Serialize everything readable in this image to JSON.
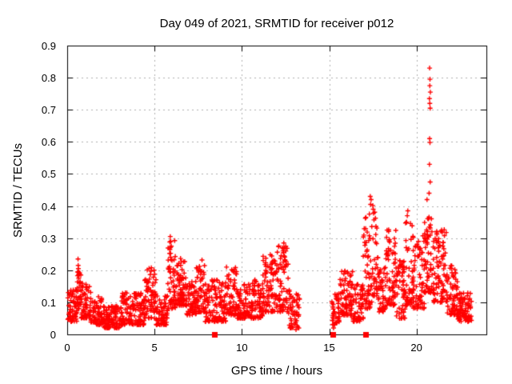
{
  "title": "Day 049 of 2021, SRMTID for receiver p012",
  "x_axis": {
    "label": "GPS time / hours",
    "range": [
      0,
      24
    ],
    "ticks": [
      {
        "v": 0,
        "label": "0"
      },
      {
        "v": 5,
        "label": "5"
      },
      {
        "v": 10,
        "label": "10"
      },
      {
        "v": 15,
        "label": "15"
      },
      {
        "v": 20,
        "label": "20"
      }
    ]
  },
  "y_axis": {
    "label": "SRMTID / TECUs",
    "range": [
      0,
      0.9
    ],
    "ticks": [
      {
        "v": 0.0,
        "label": "0"
      },
      {
        "v": 0.1,
        "label": "0.1"
      },
      {
        "v": 0.2,
        "label": "0.2"
      },
      {
        "v": 0.3,
        "label": "0.3"
      },
      {
        "v": 0.4,
        "label": "0.4"
      },
      {
        "v": 0.5,
        "label": "0.5"
      },
      {
        "v": 0.6,
        "label": "0.6"
      },
      {
        "v": 0.7,
        "label": "0.7"
      },
      {
        "v": 0.8,
        "label": "0.8"
      },
      {
        "v": 0.9,
        "label": "0.9"
      }
    ]
  },
  "colors": {
    "marker": "#ff0000",
    "grid": "#b0b0b0",
    "axis": "#000000",
    "background": "#ffffff",
    "text": "#000000"
  },
  "chart_data": {
    "type": "scatter",
    "marker": "plus",
    "title": "Day 049 of 2021, SRMTID for receiver p012",
    "xlabel": "GPS time / hours",
    "ylabel": "SRMTID / TECUs",
    "xlim": [
      0,
      24
    ],
    "ylim": [
      0,
      0.9
    ],
    "grid": true,
    "data_gap_hours": [
      13.3,
      15.15
    ],
    "seed": 49,
    "envelope_note": "dense + markers; segments give [x_start, x_end, y_min, y_max, points_per_hour] bands read from the plot",
    "envelope": [
      [
        0.0,
        0.55,
        0.04,
        0.14,
        100
      ],
      [
        0.55,
        0.8,
        0.08,
        0.2,
        110
      ],
      [
        0.8,
        1.35,
        0.05,
        0.16,
        100
      ],
      [
        1.35,
        2.1,
        0.03,
        0.12,
        100
      ],
      [
        2.1,
        3.1,
        0.02,
        0.09,
        100
      ],
      [
        3.1,
        4.4,
        0.03,
        0.13,
        100
      ],
      [
        4.4,
        5.1,
        0.05,
        0.21,
        105
      ],
      [
        5.1,
        5.75,
        0.03,
        0.12,
        100
      ],
      [
        5.75,
        6.2,
        0.08,
        0.3,
        115
      ],
      [
        6.2,
        6.8,
        0.09,
        0.24,
        110
      ],
      [
        6.8,
        7.4,
        0.06,
        0.17,
        100
      ],
      [
        7.4,
        7.9,
        0.07,
        0.24,
        105
      ],
      [
        7.9,
        9.1,
        0.04,
        0.17,
        100
      ],
      [
        9.1,
        9.7,
        0.06,
        0.21,
        100
      ],
      [
        9.7,
        10.4,
        0.05,
        0.16,
        100
      ],
      [
        10.4,
        11.2,
        0.05,
        0.17,
        100
      ],
      [
        11.2,
        12.0,
        0.07,
        0.25,
        105
      ],
      [
        12.0,
        12.65,
        0.07,
        0.28,
        105
      ],
      [
        12.65,
        13.3,
        0.02,
        0.14,
        80
      ],
      [
        15.15,
        15.6,
        0.03,
        0.13,
        95
      ],
      [
        15.6,
        16.35,
        0.06,
        0.2,
        100
      ],
      [
        16.35,
        16.95,
        0.04,
        0.16,
        100
      ],
      [
        16.95,
        17.45,
        0.08,
        0.38,
        105
      ],
      [
        17.45,
        17.75,
        0.12,
        0.42,
        100
      ],
      [
        17.75,
        18.25,
        0.07,
        0.26,
        100
      ],
      [
        18.25,
        18.85,
        0.09,
        0.33,
        105
      ],
      [
        18.85,
        19.35,
        0.05,
        0.23,
        100
      ],
      [
        19.35,
        19.75,
        0.09,
        0.37,
        100
      ],
      [
        19.75,
        20.45,
        0.08,
        0.31,
        110
      ],
      [
        20.45,
        20.95,
        0.13,
        0.37,
        115
      ],
      [
        20.95,
        21.75,
        0.1,
        0.33,
        115
      ],
      [
        21.75,
        22.35,
        0.06,
        0.22,
        105
      ],
      [
        22.35,
        23.15,
        0.04,
        0.13,
        105
      ]
    ],
    "highlight_points": [
      [
        0.62,
        0.235
      ],
      [
        0.63,
        0.215
      ],
      [
        0.64,
        0.205
      ],
      [
        0.62,
        0.195
      ],
      [
        0.65,
        0.185
      ],
      [
        0.66,
        0.175
      ],
      [
        5.9,
        0.305
      ],
      [
        5.93,
        0.29
      ],
      [
        5.96,
        0.275
      ],
      [
        5.88,
        0.265
      ],
      [
        12.4,
        0.285
      ],
      [
        12.43,
        0.27
      ],
      [
        12.38,
        0.255
      ],
      [
        17.35,
        0.43
      ],
      [
        17.4,
        0.42
      ],
      [
        17.37,
        0.405
      ],
      [
        17.52,
        0.39
      ],
      [
        17.3,
        0.375
      ],
      [
        19.5,
        0.385
      ],
      [
        19.47,
        0.37
      ],
      [
        20.6,
        0.42
      ],
      [
        20.75,
        0.83
      ],
      [
        20.77,
        0.795
      ],
      [
        20.76,
        0.775
      ],
      [
        20.79,
        0.755
      ],
      [
        20.74,
        0.735
      ],
      [
        20.76,
        0.72
      ],
      [
        20.78,
        0.705
      ],
      [
        20.75,
        0.61
      ],
      [
        20.77,
        0.598
      ],
      [
        20.74,
        0.53
      ],
      [
        20.78,
        0.475
      ],
      [
        20.72,
        0.44
      ],
      [
        13.1,
        0.015
      ],
      [
        15.25,
        0.02
      ]
    ],
    "zero_square_markers_hours": [
      8.45,
      15.2,
      17.1
    ]
  }
}
